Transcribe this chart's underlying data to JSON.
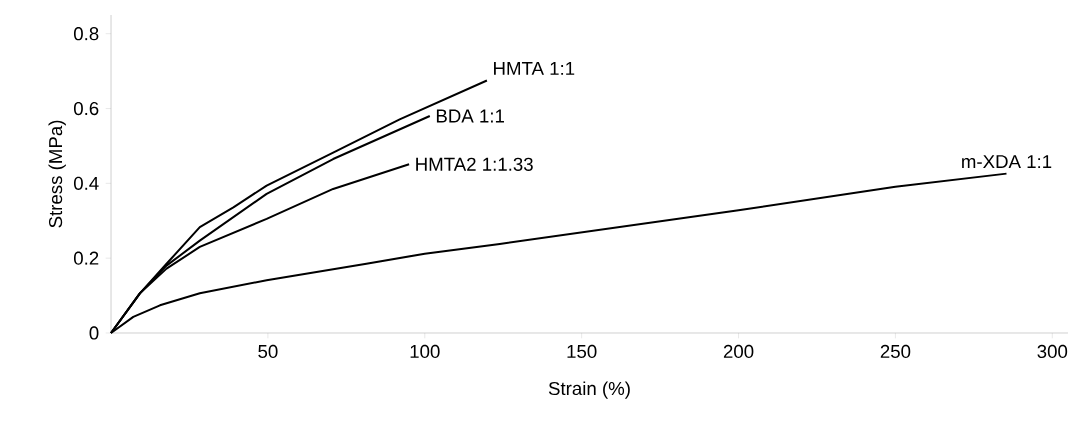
{
  "chart_data": {
    "type": "line",
    "xlabel": "Strain (%)",
    "ylabel": "Stress (MPa)",
    "xlim": [
      0,
      305
    ],
    "ylim": [
      0,
      0.85
    ],
    "xticks": [
      50,
      100,
      150,
      200,
      250,
      300
    ],
    "yticks": [
      0,
      0.2,
      0.4,
      0.6,
      0.8
    ],
    "grid": false,
    "legend": false,
    "marker": "none",
    "line_style": "solid",
    "series": [
      {
        "name": "HMTA 1:1",
        "color": "#000000",
        "x": [
          0,
          9.2,
          17.7,
          28.3,
          39,
          49.6,
          70.8,
          92,
          119.8
        ],
        "values": [
          0,
          0.106,
          0.185,
          0.283,
          0.336,
          0.394,
          0.482,
          0.571,
          0.675
        ]
      },
      {
        "name": "BDA 1:1",
        "color": "#000000",
        "x": [
          0,
          9.2,
          17.7,
          28.3,
          49.6,
          70.8,
          101.6
        ],
        "values": [
          0,
          0.106,
          0.18,
          0.247,
          0.372,
          0.465,
          0.58
        ]
      },
      {
        "name": "HMTA2 1:1.33",
        "color": "#000000",
        "x": [
          0,
          9.2,
          17.7,
          28.3,
          49.6,
          70.8,
          95
        ],
        "values": [
          0,
          0.106,
          0.172,
          0.23,
          0.305,
          0.385,
          0.451
        ]
      },
      {
        "name": "m-XDA 1:1",
        "color": "#000000",
        "x": [
          0,
          7.1,
          15.6,
          28.3,
          49.6,
          81.4,
          100,
          123.9,
          200,
          250,
          285.4
        ],
        "values": [
          0,
          0.043,
          0.074,
          0.106,
          0.141,
          0.185,
          0.212,
          0.238,
          0.328,
          0.391,
          0.426
        ]
      }
    ]
  }
}
